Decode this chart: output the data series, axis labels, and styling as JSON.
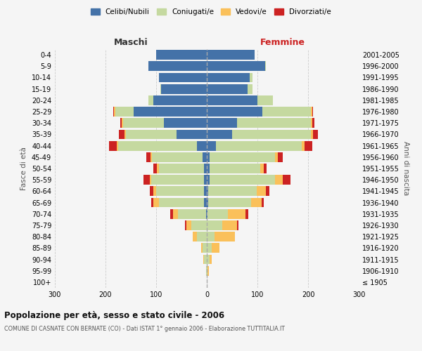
{
  "age_groups": [
    "100+",
    "95-99",
    "90-94",
    "85-89",
    "80-84",
    "75-79",
    "70-74",
    "65-69",
    "60-64",
    "55-59",
    "50-54",
    "45-49",
    "40-44",
    "35-39",
    "30-34",
    "25-29",
    "20-24",
    "15-19",
    "10-14",
    "5-9",
    "0-4"
  ],
  "birth_years": [
    "≤ 1905",
    "1906-1910",
    "1911-1915",
    "1916-1920",
    "1921-1925",
    "1926-1930",
    "1931-1935",
    "1936-1940",
    "1941-1945",
    "1946-1950",
    "1951-1955",
    "1956-1960",
    "1961-1965",
    "1966-1970",
    "1971-1975",
    "1976-1980",
    "1981-1985",
    "1986-1990",
    "1991-1995",
    "1996-2000",
    "2001-2005"
  ],
  "males": {
    "celibi": [
      0,
      0,
      0,
      0,
      0,
      0,
      2,
      5,
      5,
      5,
      5,
      8,
      20,
      60,
      85,
      145,
      105,
      90,
      95,
      115,
      100
    ],
    "coniugati": [
      0,
      2,
      5,
      8,
      20,
      30,
      55,
      90,
      95,
      105,
      90,
      100,
      155,
      100,
      80,
      35,
      10,
      2,
      0,
      0,
      0
    ],
    "vedovi": [
      0,
      0,
      2,
      3,
      8,
      10,
      10,
      10,
      5,
      3,
      3,
      3,
      3,
      3,
      3,
      3,
      0,
      0,
      0,
      0,
      0
    ],
    "divorziati": [
      0,
      0,
      0,
      0,
      0,
      3,
      5,
      5,
      8,
      12,
      8,
      8,
      15,
      10,
      3,
      2,
      0,
      0,
      0,
      0,
      0
    ]
  },
  "females": {
    "nubili": [
      0,
      0,
      0,
      0,
      0,
      0,
      2,
      3,
      3,
      5,
      5,
      5,
      18,
      50,
      60,
      110,
      100,
      80,
      85,
      115,
      95
    ],
    "coniugate": [
      0,
      2,
      5,
      10,
      15,
      30,
      40,
      85,
      95,
      130,
      100,
      130,
      170,
      155,
      145,
      95,
      30,
      10,
      5,
      2,
      0
    ],
    "vedove": [
      0,
      2,
      5,
      15,
      40,
      30,
      35,
      20,
      18,
      15,
      8,
      5,
      5,
      5,
      3,
      3,
      0,
      0,
      0,
      0,
      0
    ],
    "divorziate": [
      0,
      0,
      0,
      0,
      0,
      3,
      5,
      5,
      8,
      15,
      5,
      10,
      15,
      10,
      5,
      2,
      0,
      0,
      0,
      0,
      0
    ]
  },
  "colors": {
    "celibi": "#4472a8",
    "coniugati": "#c5d9a0",
    "vedovi": "#fac05a",
    "divorziati": "#cc2222"
  },
  "xlim": 300,
  "title": "Popolazione per età, sesso e stato civile - 2006",
  "subtitle": "COMUNE DI CASNATE CON BERNATE (CO) - Dati ISTAT 1° gennaio 2006 - Elaborazione TUTTITALIA.IT",
  "ylabel_left": "Fasce di età",
  "ylabel_right": "Anni di nascita",
  "xlabel_left": "Maschi",
  "xlabel_right": "Femmine",
  "legend_labels": [
    "Celibi/Nubili",
    "Coniugati/e",
    "Vedovi/e",
    "Divorziati/e"
  ],
  "bg_color": "#f5f5f5",
  "grid_color": "#cccccc"
}
